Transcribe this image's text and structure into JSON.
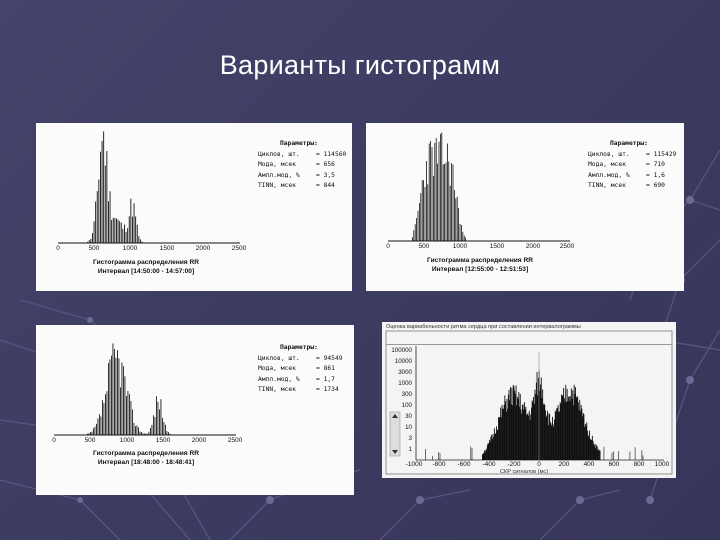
{
  "title": "Варианты гистограмм",
  "panel1": {
    "params": {
      "header": "Параметры:",
      "rows": [
        {
          "k": "Циклов, шт.",
          "v": "= 114560"
        },
        {
          "k": "Мода, мсек",
          "v": "= 656"
        },
        {
          "k": "Ампл.мод, %",
          "v": "= 3,5"
        },
        {
          "k": "TINN, мсек",
          "v": "= 844"
        }
      ]
    },
    "ticks": [
      "0",
      "500",
      "1000",
      "1500",
      "2000",
      "2500"
    ],
    "caption1": "Гистограмма распределения RR",
    "caption2": "Интервал [14:50:00 - 14:57:00]"
  },
  "panel2": {
    "params": {
      "header": "Параметры:",
      "rows": [
        {
          "k": "Циклов, шт.",
          "v": "= 115429"
        },
        {
          "k": "Мода, мсек",
          "v": "= 710"
        },
        {
          "k": "Ампл.мод, %",
          "v": "= 1,6"
        },
        {
          "k": "TINN, мсек",
          "v": "= 690"
        }
      ]
    },
    "ticks": [
      "0",
      "500",
      "1000",
      "1500",
      "2000",
      "2500"
    ],
    "caption1": "Гистограмма распределения RR",
    "caption2": "Интервал [12:55:00 - 12:51:53]"
  },
  "panel3": {
    "params": {
      "header": "Параметры:",
      "rows": [
        {
          "k": "Циклов, шт.",
          "v": "= 94549"
        },
        {
          "k": "Мода, мсек",
          "v": "= 861"
        },
        {
          "k": "Ампл.мод, %",
          "v": "= 1,7"
        },
        {
          "k": "TINN, мсек",
          "v": "= 1734"
        }
      ]
    },
    "ticks": [
      "0",
      "500",
      "1000",
      "1500",
      "2000",
      "2500"
    ],
    "caption1": "Гистограмма распределения RR",
    "caption2": "Интервал [18:48:00 - 18:48:41]"
  },
  "panel4": {
    "header": "Оценка вариабельности ритма сердца при составлении интервалограммы",
    "yticks": [
      "100000",
      "10000",
      "3000",
      "1000",
      "300",
      "100",
      "30",
      "10",
      "3",
      "1"
    ],
    "xticks": [
      "-1000",
      "-800",
      "-600",
      "-400",
      "-200",
      "0",
      "200",
      "400",
      "600",
      "800",
      "1000"
    ],
    "xlabel": "СКР сигналов (мс)"
  },
  "colors": {
    "background": "#3d3c62",
    "panel": "#fbfbfb",
    "bars": "#111111"
  }
}
